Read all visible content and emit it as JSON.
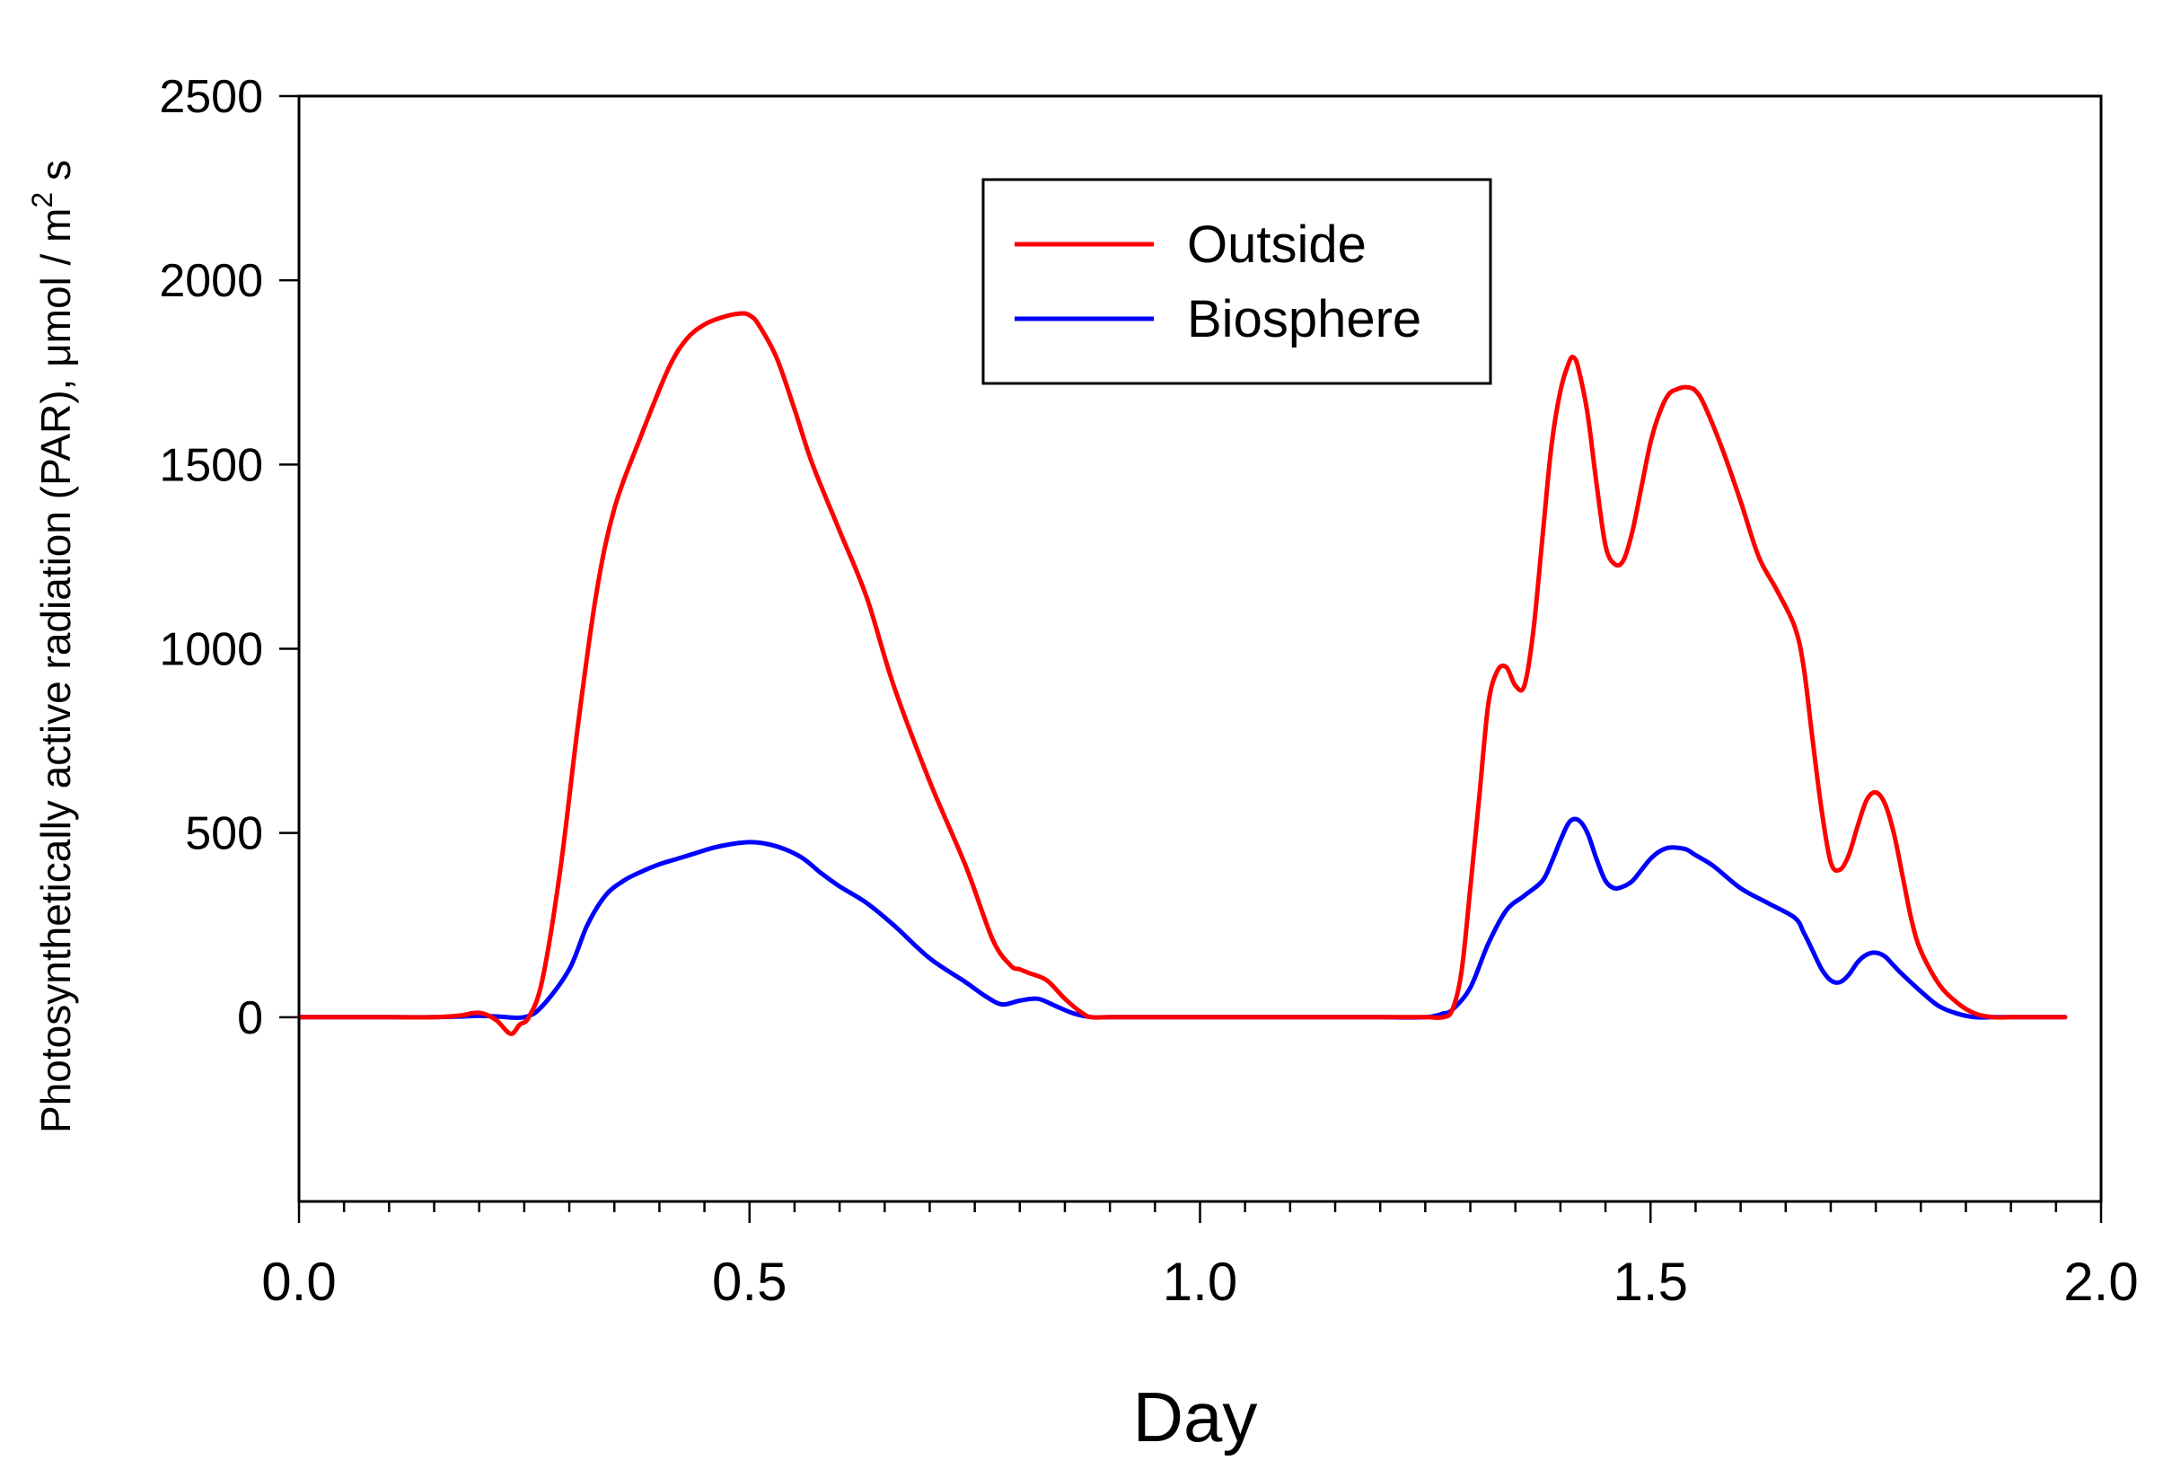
{
  "chart_data": {
    "type": "line",
    "title": "",
    "xlabel": "Day",
    "ylabel": {
      "main": "Photosynthetically active radiation (PAR), μmol / m",
      "superscript": "2",
      "suffix": " s"
    },
    "xlim": [
      0.0,
      2.0
    ],
    "ylim": [
      -500,
      2500
    ],
    "x_ticks": [
      0.0,
      0.5,
      1.0,
      1.5,
      2.0
    ],
    "x_tick_labels": [
      "0.0",
      "0.5",
      "1.0",
      "1.5",
      "2.0"
    ],
    "x_minor_step": 0.05,
    "y_ticks": [
      0,
      500,
      1000,
      1500,
      2000,
      2500
    ],
    "y_tick_labels": [
      "0",
      "500",
      "1000",
      "1500",
      "2000",
      "2500"
    ],
    "grid": false,
    "legend_position": "top-center",
    "series": [
      {
        "name": "Outside",
        "color": "#ff0000",
        "x": [
          0.0,
          0.05,
          0.1,
          0.15,
          0.18,
          0.19,
          0.2,
          0.21,
          0.22,
          0.235,
          0.245,
          0.255,
          0.27,
          0.29,
          0.31,
          0.33,
          0.35,
          0.38,
          0.41,
          0.43,
          0.45,
          0.47,
          0.49,
          0.5,
          0.51,
          0.53,
          0.55,
          0.57,
          0.6,
          0.63,
          0.66,
          0.7,
          0.74,
          0.77,
          0.79,
          0.8,
          0.81,
          0.83,
          0.85,
          0.87,
          0.88,
          0.9,
          0.95,
          1.0,
          1.05,
          1.1,
          1.15,
          1.2,
          1.25,
          1.27,
          1.28,
          1.29,
          1.3,
          1.31,
          1.32,
          1.33,
          1.34,
          1.35,
          1.36,
          1.37,
          1.38,
          1.39,
          1.4,
          1.41,
          1.415,
          1.42,
          1.43,
          1.44,
          1.45,
          1.46,
          1.47,
          1.48,
          1.49,
          1.5,
          1.51,
          1.52,
          1.53,
          1.54,
          1.55,
          1.56,
          1.58,
          1.6,
          1.62,
          1.64,
          1.66,
          1.67,
          1.68,
          1.69,
          1.7,
          1.71,
          1.72,
          1.73,
          1.74,
          1.75,
          1.76,
          1.77,
          1.78,
          1.79,
          1.8,
          1.82,
          1.84,
          1.86,
          1.88,
          1.9,
          1.92,
          1.94,
          1.96
        ],
        "values": [
          0,
          0,
          0,
          0,
          5,
          10,
          12,
          5,
          -10,
          -45,
          -20,
          0,
          100,
          400,
          800,
          1150,
          1380,
          1580,
          1760,
          1840,
          1880,
          1900,
          1910,
          1905,
          1880,
          1790,
          1650,
          1500,
          1320,
          1140,
          900,
          640,
          410,
          210,
          140,
          130,
          120,
          100,
          50,
          10,
          0,
          0,
          0,
          0,
          0,
          0,
          0,
          0,
          0,
          0,
          20,
          120,
          350,
          600,
          850,
          940,
          950,
          900,
          900,
          1050,
          1300,
          1550,
          1700,
          1780,
          1790,
          1760,
          1640,
          1450,
          1280,
          1230,
          1240,
          1320,
          1440,
          1560,
          1640,
          1690,
          1705,
          1710,
          1700,
          1660,
          1540,
          1400,
          1250,
          1160,
          1060,
          950,
          750,
          560,
          420,
          400,
          440,
          520,
          590,
          610,
          580,
          500,
          380,
          260,
          180,
          90,
          40,
          10,
          0,
          0,
          0,
          0,
          0
        ]
      },
      {
        "name": "Biosphere",
        "color": "#0000ff",
        "x": [
          0.0,
          0.05,
          0.1,
          0.15,
          0.18,
          0.2,
          0.22,
          0.25,
          0.27,
          0.3,
          0.32,
          0.34,
          0.36,
          0.38,
          0.4,
          0.42,
          0.44,
          0.46,
          0.48,
          0.5,
          0.52,
          0.54,
          0.56,
          0.58,
          0.6,
          0.63,
          0.66,
          0.7,
          0.74,
          0.76,
          0.78,
          0.8,
          0.82,
          0.84,
          0.86,
          0.88,
          0.9,
          0.95,
          1.0,
          1.05,
          1.1,
          1.15,
          1.2,
          1.25,
          1.27,
          1.28,
          1.3,
          1.32,
          1.34,
          1.36,
          1.38,
          1.39,
          1.4,
          1.41,
          1.42,
          1.43,
          1.44,
          1.45,
          1.46,
          1.47,
          1.48,
          1.49,
          1.5,
          1.51,
          1.52,
          1.53,
          1.54,
          1.55,
          1.57,
          1.6,
          1.63,
          1.66,
          1.67,
          1.68,
          1.69,
          1.7,
          1.71,
          1.72,
          1.73,
          1.74,
          1.75,
          1.76,
          1.77,
          1.78,
          1.8,
          1.82,
          1.84,
          1.86,
          1.88,
          1.9,
          1.92,
          1.94,
          1.96
        ],
        "values": [
          0,
          0,
          0,
          0,
          2,
          4,
          2,
          0,
          30,
          130,
          250,
          330,
          370,
          395,
          415,
          430,
          445,
          460,
          470,
          475,
          470,
          455,
          430,
          390,
          355,
          310,
          250,
          160,
          95,
          60,
          35,
          45,
          50,
          30,
          10,
          0,
          0,
          0,
          0,
          0,
          0,
          0,
          0,
          0,
          10,
          20,
          80,
          200,
          290,
          330,
          370,
          420,
          480,
          530,
          535,
          500,
          430,
          370,
          350,
          355,
          370,
          400,
          430,
          450,
          460,
          460,
          455,
          440,
          410,
          350,
          310,
          270,
          230,
          180,
          130,
          100,
          95,
          115,
          150,
          170,
          175,
          165,
          140,
          115,
          70,
          30,
          10,
          0,
          0,
          0,
          0,
          0,
          0
        ]
      }
    ]
  }
}
